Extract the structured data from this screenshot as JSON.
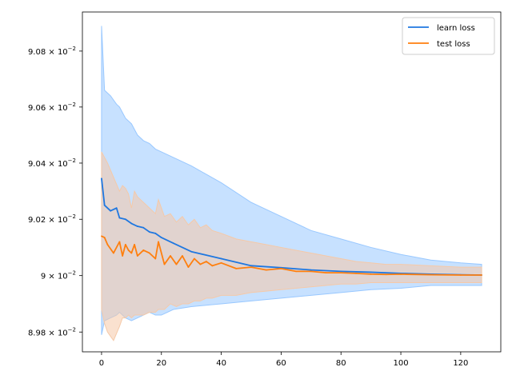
{
  "chart_data": {
    "type": "line",
    "title": "",
    "xlabel": "",
    "ylabel": "",
    "y_scale": "log",
    "xlim": [
      -6.4,
      133.4
    ],
    "ylim": [
      0.08973,
      0.09094
    ],
    "grid": false,
    "legend_position": "top-right",
    "x_ticks": [
      0,
      20,
      40,
      60,
      80,
      100,
      120
    ],
    "x_tick_labels": [
      "0",
      "20",
      "40",
      "60",
      "80",
      "100",
      "120"
    ],
    "y_ticks": [
      0.0898,
      0.09,
      0.0902,
      0.0904,
      0.0906,
      0.0908
    ],
    "y_tick_labels": [
      {
        "mantissa": "8.98",
        "exp": "−2"
      },
      {
        "mantissa": "9",
        "exp": "−2"
      },
      {
        "mantissa": "9.02",
        "exp": "−2"
      },
      {
        "mantissa": "9.04",
        "exp": "−2"
      },
      {
        "mantissa": "9.06",
        "exp": "−2"
      },
      {
        "mantissa": "9.08",
        "exp": "−2"
      }
    ],
    "series": [
      {
        "name": "learn loss",
        "color": "#1f77e0",
        "band_color": "#99c8ff",
        "x": [
          0,
          1,
          3,
          5,
          6,
          8,
          10,
          12,
          14,
          16,
          18,
          20,
          24,
          30,
          40,
          50,
          60,
          70,
          80,
          90,
          100,
          110,
          120,
          127
        ],
        "y": [
          0.090345,
          0.09025,
          0.09023,
          0.09024,
          0.090205,
          0.0902,
          0.090185,
          0.090175,
          0.09017,
          0.090155,
          0.09015,
          0.090135,
          0.090115,
          0.090085,
          0.09006,
          0.090035,
          0.090028,
          0.09002,
          0.090015,
          0.090012,
          0.090008,
          0.090005,
          0.090003,
          0.090002
        ],
        "band_upper": [
          0.09089,
          0.09066,
          0.09064,
          0.09061,
          0.0906,
          0.09056,
          0.09054,
          0.0905,
          0.09048,
          0.09047,
          0.09045,
          0.09044,
          0.09042,
          0.09039,
          0.09033,
          0.09026,
          0.09021,
          0.09016,
          0.09013,
          0.0901,
          0.090075,
          0.090055,
          0.090045,
          0.09004
        ],
        "band_lower": [
          0.08979,
          0.08984,
          0.08985,
          0.08986,
          0.08987,
          0.08985,
          0.08984,
          0.08985,
          0.08986,
          0.08987,
          0.08986,
          0.08986,
          0.08988,
          0.08989,
          0.0899,
          0.08991,
          0.08992,
          0.08993,
          0.08994,
          0.08995,
          0.089955,
          0.089965,
          0.089965,
          0.089965
        ]
      },
      {
        "name": "test loss",
        "color": "#ff7f0e",
        "band_color": "#f5c9a8",
        "x": [
          0,
          1,
          2,
          4,
          6,
          7,
          8,
          9,
          10,
          11,
          12,
          14,
          16,
          18,
          19,
          21,
          23,
          25,
          27,
          29,
          31,
          33,
          35,
          37,
          40,
          45,
          50,
          55,
          60,
          65,
          70,
          75,
          80,
          85,
          90,
          95,
          100,
          110,
          120,
          127
        ],
        "y": [
          0.09014,
          0.090135,
          0.09011,
          0.09008,
          0.09012,
          0.09007,
          0.09011,
          0.09009,
          0.09008,
          0.09011,
          0.09007,
          0.09009,
          0.09008,
          0.09006,
          0.09012,
          0.09004,
          0.09007,
          0.09004,
          0.09007,
          0.09003,
          0.09006,
          0.09004,
          0.09005,
          0.090035,
          0.090045,
          0.090025,
          0.09003,
          0.09002,
          0.090025,
          0.090015,
          0.090015,
          0.09001,
          0.09001,
          0.090008,
          0.090005,
          0.090004,
          0.090005,
          0.090003,
          0.090002,
          0.090002
        ],
        "band_upper": [
          0.09044,
          0.09042,
          0.0904,
          0.09035,
          0.0903,
          0.09032,
          0.09031,
          0.09029,
          0.09024,
          0.0903,
          0.09028,
          0.09026,
          0.09024,
          0.09022,
          0.09027,
          0.09021,
          0.09022,
          0.09019,
          0.09021,
          0.09018,
          0.0902,
          0.09017,
          0.09018,
          0.09016,
          0.09015,
          0.09013,
          0.09012,
          0.09011,
          0.0901,
          0.09009,
          0.09008,
          0.09007,
          0.09006,
          0.09005,
          0.090045,
          0.09004,
          0.09004,
          0.090035,
          0.09003,
          0.09003
        ],
        "band_lower": [
          0.08988,
          0.08983,
          0.0898,
          0.08977,
          0.08982,
          0.08985,
          0.08985,
          0.08986,
          0.08985,
          0.08986,
          0.08986,
          0.08986,
          0.08987,
          0.08987,
          0.08988,
          0.08988,
          0.0899,
          0.08989,
          0.0899,
          0.0899,
          0.08991,
          0.08991,
          0.08992,
          0.08992,
          0.08993,
          0.08993,
          0.08994,
          0.089945,
          0.08995,
          0.089955,
          0.08996,
          0.089965,
          0.08997,
          0.08997,
          0.089975,
          0.089975,
          0.089975,
          0.089975,
          0.089975,
          0.089975
        ]
      }
    ]
  }
}
